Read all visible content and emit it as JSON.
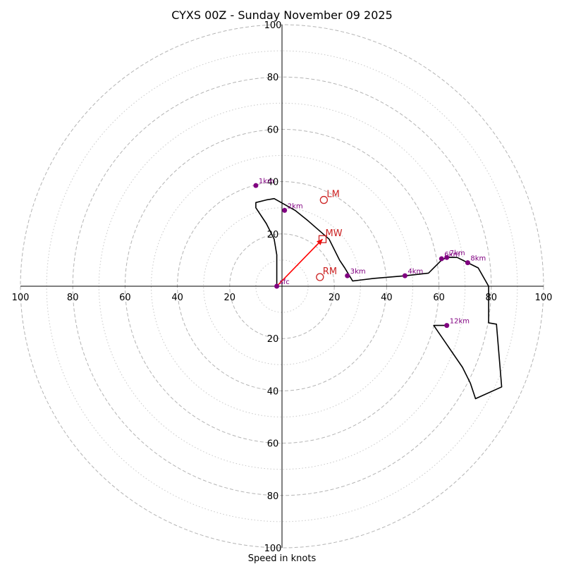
{
  "chart_data": {
    "type": "hodograph",
    "title": "CYXS 00Z - Sunday November 09 2025",
    "xlabel": "Speed in knots",
    "xlim": [
      -100,
      100
    ],
    "ylim": [
      -100,
      100
    ],
    "rings_major": [
      20,
      40,
      60,
      80,
      100
    ],
    "rings_minor": [
      10,
      30,
      50,
      70,
      90
    ],
    "tick_labels": [
      "100",
      "80",
      "60",
      "40",
      "20",
      "20",
      "40",
      "60",
      "80",
      "100"
    ],
    "hodograph_trace": {
      "color": "#000000",
      "points": [
        [
          -2,
          0
        ],
        [
          -2,
          12
        ],
        [
          -3,
          18
        ],
        [
          -6,
          24
        ],
        [
          -10,
          30
        ],
        [
          -10,
          32
        ],
        [
          -6,
          33
        ],
        [
          -3,
          33.5
        ],
        [
          5,
          29
        ],
        [
          10,
          25
        ],
        [
          18,
          18
        ],
        [
          22,
          10
        ],
        [
          24,
          7
        ],
        [
          27,
          2
        ],
        [
          35,
          3
        ],
        [
          47,
          4
        ],
        [
          56,
          5
        ],
        [
          61,
          10
        ],
        [
          63,
          11
        ],
        [
          67,
          11
        ],
        [
          71,
          9
        ],
        [
          75,
          7
        ],
        [
          79,
          0
        ],
        [
          79,
          -14
        ],
        [
          82,
          -14.5
        ],
        [
          84,
          -38.5
        ],
        [
          74,
          -43
        ],
        [
          72,
          -37
        ],
        [
          69,
          -31
        ],
        [
          58,
          -15
        ],
        [
          63,
          -15
        ]
      ]
    },
    "height_markers": [
      {
        "label": "sfc",
        "u": -2,
        "v": 0
      },
      {
        "label": "1km",
        "u": -10,
        "v": 38.5
      },
      {
        "label": "2km",
        "u": 1,
        "v": 29
      },
      {
        "label": "3km",
        "u": 25,
        "v": 4
      },
      {
        "label": "4km",
        "u": 47,
        "v": 4
      },
      {
        "label": "6km",
        "u": 61,
        "v": 10.5
      },
      {
        "label": "7km",
        "u": 63,
        "v": 11
      },
      {
        "label": "8km",
        "u": 71,
        "v": 9
      },
      {
        "label": "12km",
        "u": 63,
        "v": -15
      }
    ],
    "marker_color": "#800080",
    "motions": [
      {
        "label": "LM",
        "u": 16,
        "v": 33,
        "shape": "circle"
      },
      {
        "label": "MW",
        "u": 15.5,
        "v": 18,
        "shape": "square"
      },
      {
        "label": "RM",
        "u": 14.5,
        "v": 3.5,
        "shape": "circle"
      }
    ],
    "motion_color": "#cc2222",
    "mean_wind_vector": {
      "from": [
        -2,
        0
      ],
      "to": [
        15.5,
        18
      ],
      "color": "#ff0000"
    }
  }
}
